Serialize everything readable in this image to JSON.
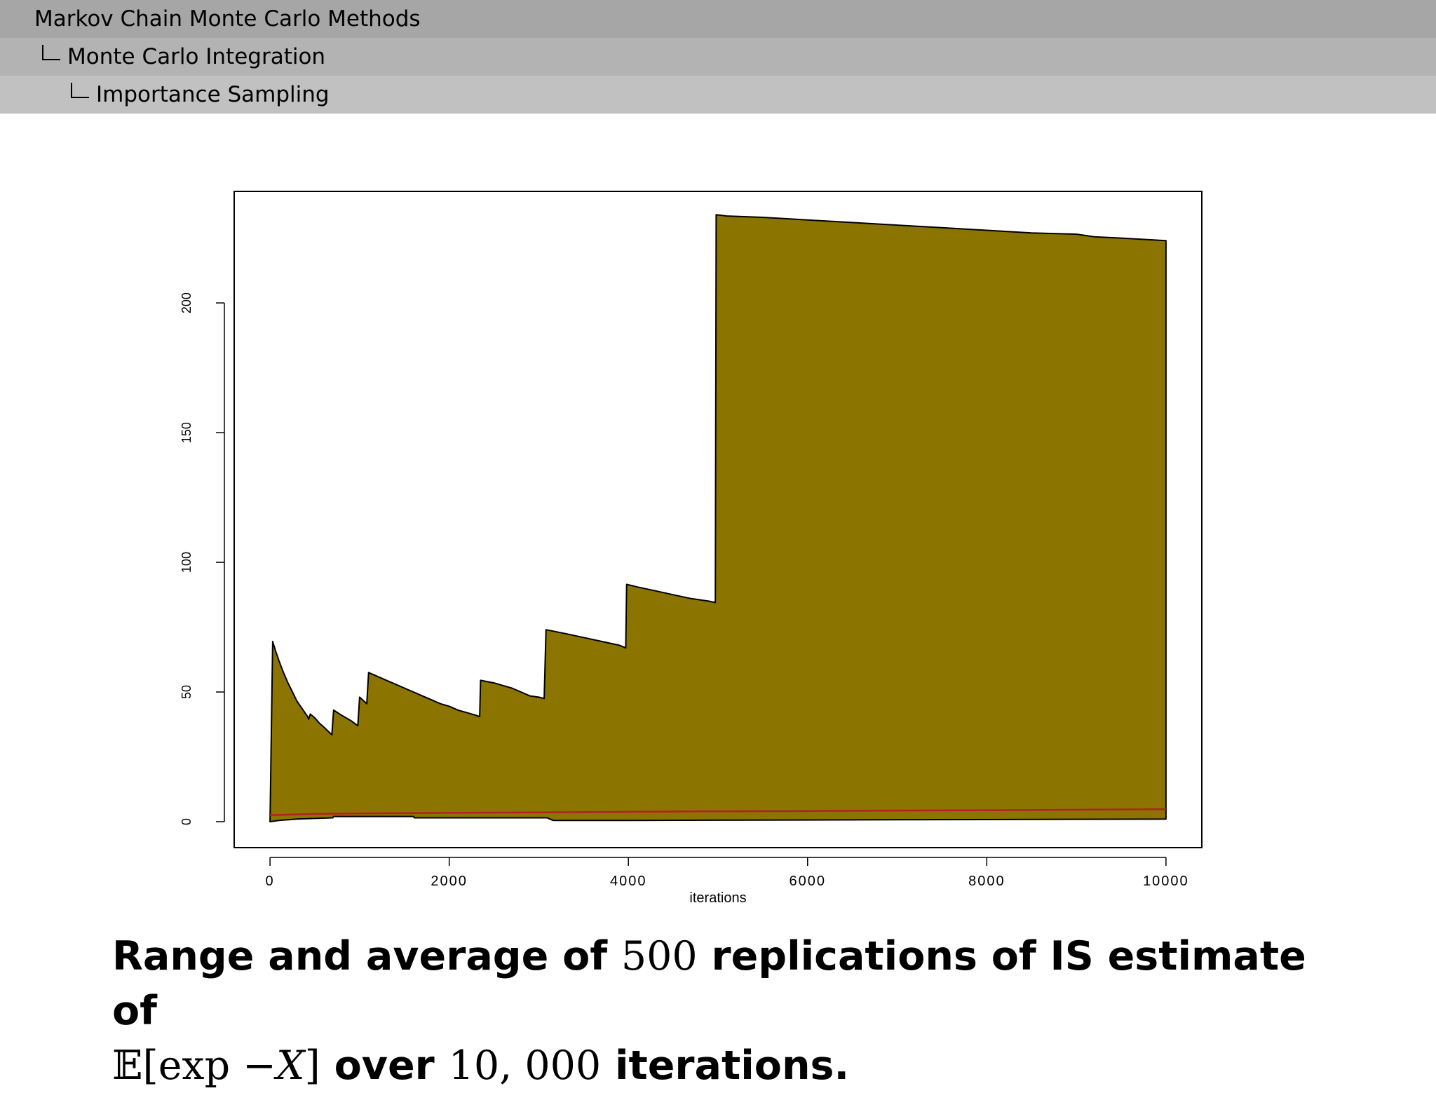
{
  "header": {
    "section": "Markov Chain Monte Carlo Methods",
    "subsection": "Monte Carlo Integration",
    "subsubsection": "Importance Sampling"
  },
  "colors": {
    "header_1": "#a6a6a6",
    "header_2": "#b3b3b3",
    "header_3": "#c1c1c1",
    "band_fill": "#8b7500",
    "average_line": "#b22222"
  },
  "chart_data": {
    "type": "area",
    "xlabel": "iterations",
    "ylabel": "",
    "xlim": [
      -400,
      10400
    ],
    "ylim": [
      -10,
      243
    ],
    "x_ticks": [
      0,
      2000,
      4000,
      6000,
      8000,
      10000
    ],
    "y_ticks": [
      0,
      50,
      100,
      150,
      200
    ],
    "grid": false,
    "series": [
      {
        "role": "upper range",
        "x": [
          0,
          30,
          60,
          100,
          150,
          200,
          250,
          300,
          360,
          420,
          430,
          450,
          500,
          550,
          600,
          690,
          710,
          800,
          900,
          980,
          1000,
          1080,
          1100,
          1200,
          1300,
          1400,
          1500,
          1600,
          1700,
          1800,
          1900,
          2000,
          2100,
          2200,
          2300,
          2340,
          2350,
          2500,
          2600,
          2700,
          2800,
          2900,
          3000,
          3060,
          3080,
          3300,
          3500,
          3700,
          3900,
          3970,
          3980,
          4100,
          4300,
          4500,
          4700,
          4900,
          4970,
          4980,
          5100,
          5500,
          6000,
          6500,
          7000,
          7500,
          8000,
          8500,
          9000,
          9100,
          9200,
          9500,
          10000
        ],
        "y": [
          0,
          69.5,
          66,
          62,
          57.5,
          53.5,
          50,
          46.5,
          43.5,
          40.5,
          39.5,
          41.5,
          40,
          38,
          36.5,
          33.5,
          43,
          41,
          39,
          37,
          48,
          45.5,
          57.5,
          56,
          54.5,
          53,
          51.5,
          50,
          48.5,
          47,
          45.5,
          44.5,
          43,
          42,
          41,
          40.5,
          54.5,
          53.5,
          52.5,
          51.5,
          50,
          48.5,
          48,
          47.5,
          74,
          72.5,
          71,
          69.5,
          68,
          67,
          91.5,
          90.5,
          89,
          87.5,
          86,
          85,
          84.5,
          234,
          233.5,
          233,
          232,
          231,
          230,
          229,
          228,
          227,
          226.5,
          226,
          225.5,
          225,
          224
        ]
      },
      {
        "role": "lower range",
        "x": [
          0,
          100,
          300,
          700,
          710,
          1600,
          1610,
          3100,
          3110,
          3160,
          4000,
          10000
        ],
        "y": [
          0,
          0.5,
          1,
          1.5,
          2,
          2,
          1.5,
          1.5,
          1.2,
          0.5,
          0.5,
          1
        ]
      },
      {
        "role": "average",
        "x": [
          0,
          500,
          1000,
          2000,
          3000,
          4000,
          5000,
          6000,
          7000,
          8000,
          9000,
          10000
        ],
        "y": [
          2.5,
          3,
          3.2,
          3.4,
          3.6,
          3.8,
          4.0,
          4.1,
          4.3,
          4.4,
          4.6,
          4.8
        ]
      }
    ]
  },
  "caption": {
    "p1": "Range and average of ",
    "n1": "500",
    "p2": " replications of IS estimate of",
    "e_sym": "𝔼",
    "e_open": "[exp −",
    "e_var": "X",
    "e_close": "]",
    "p3": " over ",
    "n2": "10, 000",
    "p4": " iterations."
  }
}
